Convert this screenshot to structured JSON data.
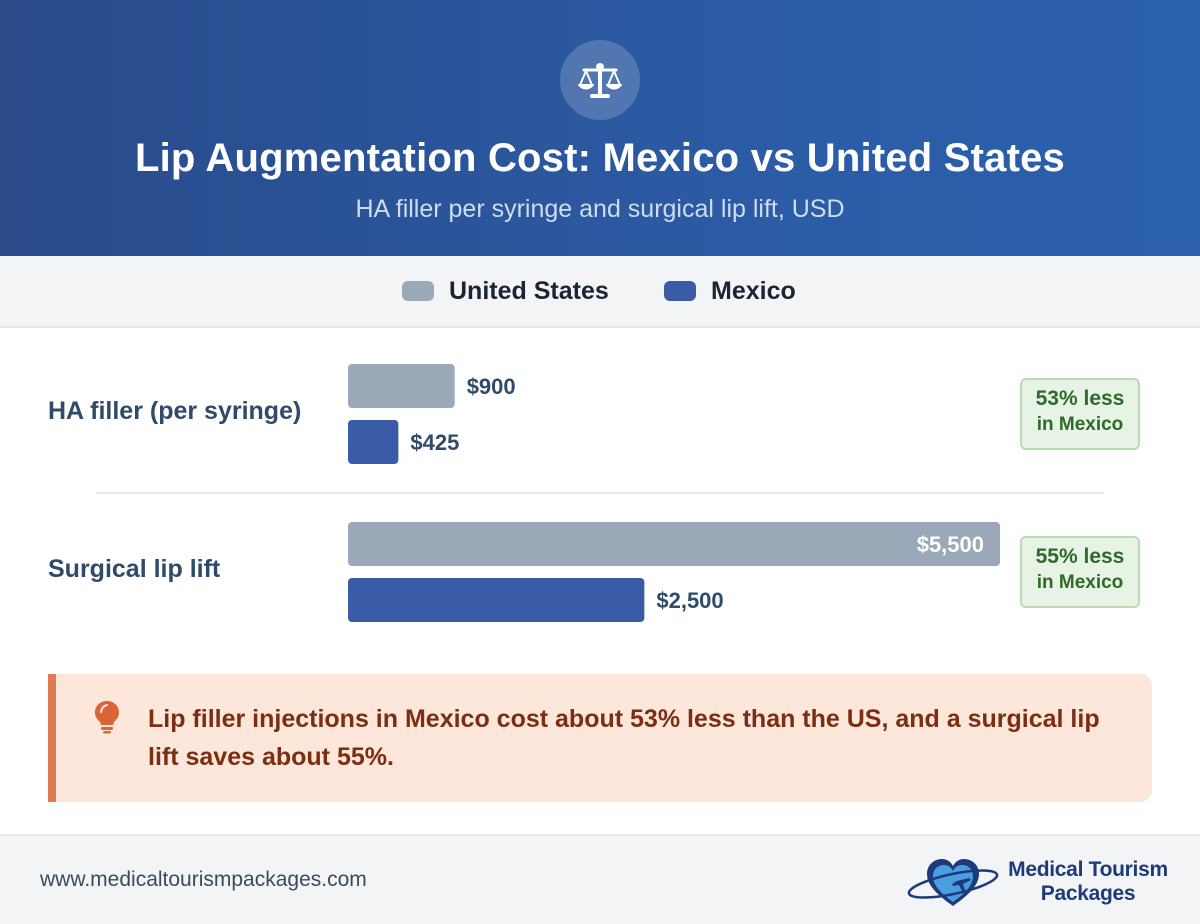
{
  "header": {
    "icon": "scale-icon",
    "title": "Lip Augmentation Cost: Mexico vs United States",
    "subtitle": "HA filler per syringe and surgical lip lift, USD"
  },
  "legend": [
    {
      "label": "United States",
      "color": "#9aa8b7"
    },
    {
      "label": "Mexico",
      "color": "#3a5ba5"
    }
  ],
  "chart_data": {
    "type": "bar",
    "orientation": "horizontal",
    "categories": [
      "HA filler (per syringe)",
      "Surgical lip lift"
    ],
    "series": [
      {
        "name": "United States",
        "values": [
          900,
          5500
        ],
        "labels": [
          "$900",
          "$5,500"
        ],
        "color": "#9aa8b7"
      },
      {
        "name": "Mexico",
        "values": [
          425,
          2500
        ],
        "labels": [
          "$425",
          "$2,500"
        ],
        "color": "#3a5ba5"
      }
    ],
    "xlim": [
      0,
      5500
    ],
    "annotations": [
      {
        "line1": "53% less",
        "line2": "in Mexico"
      },
      {
        "line1": "55% less",
        "line2": "in Mexico"
      }
    ]
  },
  "callout": {
    "icon": "lightbulb-icon",
    "text": "Lip filler injections in Mexico cost about 53% less than the US, and a surgical lip lift saves about 55%."
  },
  "footer": {
    "url": "www.medicaltourismpackages.com",
    "logo_line1": "Medical Tourism",
    "logo_line2": "Packages"
  },
  "colors": {
    "header_start": "#2a4a8a",
    "header_end": "#2b60ae",
    "us_bar": "#9aa8b7",
    "mexico_bar": "#3a5ba5",
    "badge_bg": "#e7f3e4",
    "badge_text": "#2e6b2a",
    "callout_bg": "#fde6da",
    "callout_accent": "#e07a52",
    "callout_text": "#7c2e12"
  }
}
